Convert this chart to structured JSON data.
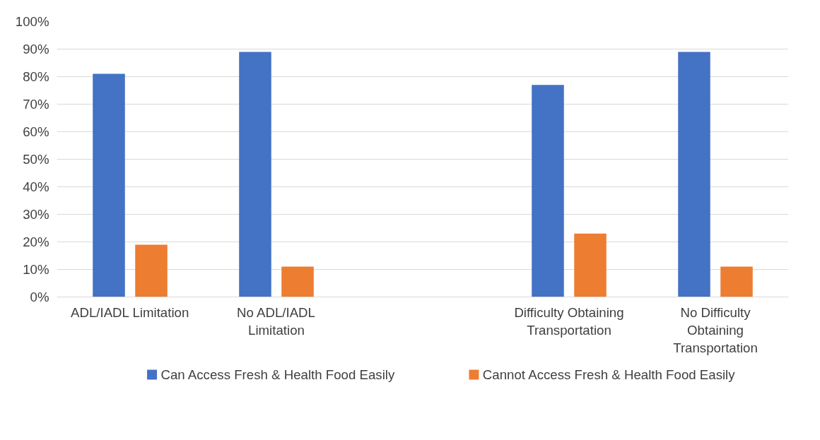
{
  "chart_data": {
    "type": "bar",
    "categories": [
      "ADL/IADL Limitation",
      "No ADL/IADL Limitation",
      null,
      "Difficulty Obtaining Transportation",
      "No Difficulty Obtaining Transportation"
    ],
    "series": [
      {
        "name": "Can Access Fresh & Health Food Easily",
        "color": "#4472c4",
        "values": [
          81,
          89,
          null,
          77,
          89
        ]
      },
      {
        "name": "Cannot Access Fresh & Health Food Easily",
        "color": "#ed7d31",
        "values": [
          19,
          11,
          null,
          23,
          11
        ]
      }
    ],
    "ylim": [
      0,
      100
    ],
    "yticks": [
      {
        "value": 0,
        "label": "0%"
      },
      {
        "value": 10,
        "label": "10%"
      },
      {
        "value": 20,
        "label": "20%"
      },
      {
        "value": 30,
        "label": "30%"
      },
      {
        "value": 40,
        "label": "40%"
      },
      {
        "value": 50,
        "label": "50%"
      },
      {
        "value": 60,
        "label": "60%"
      },
      {
        "value": 70,
        "label": "70%"
      },
      {
        "value": 80,
        "label": "80%"
      },
      {
        "value": 90,
        "label": "90%"
      },
      {
        "value": 100,
        "label": "100%"
      }
    ],
    "grid": "y",
    "legend": "bottom"
  }
}
